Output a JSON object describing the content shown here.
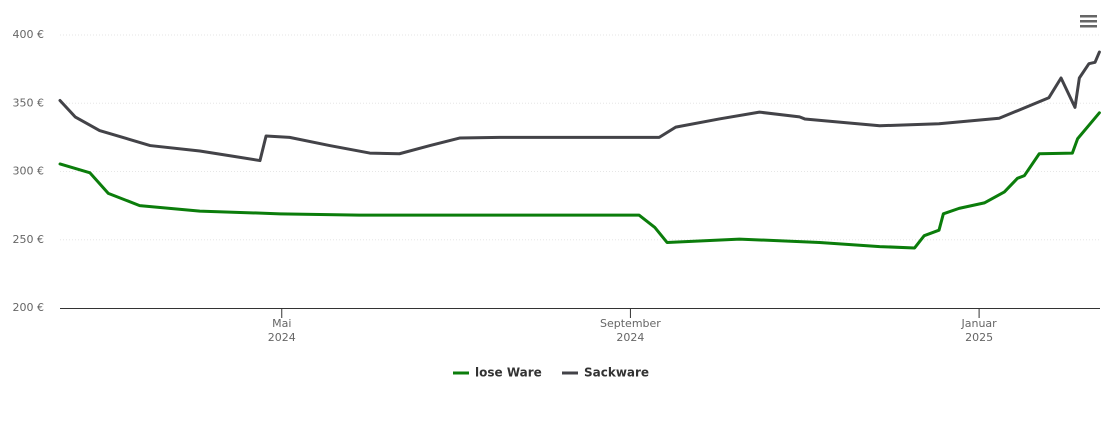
{
  "chart_data": {
    "type": "line",
    "series": [
      {
        "name": "lose Ware",
        "color": "#0b7d0b",
        "x": [
          2.456,
          2.8,
          3.01,
          3.37,
          4.06,
          4.98,
          5.89,
          7.5,
          9.1,
          9.28,
          9.42,
          10.25,
          11.17,
          11.86,
          12.26,
          12.37,
          12.54,
          12.59,
          12.77,
          13.06,
          13.29,
          13.44,
          13.52,
          13.69,
          14.07,
          14.13,
          14.38
        ],
        "values": [
          305.5,
          299,
          284,
          275,
          271,
          269,
          268,
          268,
          268,
          259,
          248,
          250.5,
          248,
          245,
          244,
          253,
          257,
          269,
          273,
          277,
          285,
          295,
          297,
          313,
          313.5,
          324,
          343
        ]
      },
      {
        "name": "Sackware",
        "color": "#434348",
        "x": [
          2.456,
          2.63,
          2.91,
          3.49,
          4.06,
          4.46,
          4.75,
          4.82,
          5.09,
          5.55,
          6.01,
          6.35,
          6.7,
          7.04,
          7.5,
          8.65,
          9.33,
          9.52,
          10.02,
          10.48,
          10.94,
          11.0,
          11.86,
          12.54,
          13.23,
          13.8,
          13.94,
          14.1,
          14.15,
          14.26,
          14.33,
          14.38
        ],
        "values": [
          352,
          340,
          330,
          319,
          315,
          311,
          308,
          326,
          325,
          319,
          313.5,
          313,
          319,
          324.5,
          325,
          325,
          325,
          332.5,
          338.5,
          343.5,
          340,
          338.5,
          333.5,
          335,
          339,
          354,
          368.5,
          347,
          368.5,
          379,
          380,
          387.5
        ]
      }
    ],
    "xlim": [
      2.456,
      14.387
    ],
    "xticks": [
      {
        "value": 5,
        "label": "Mai\n2024"
      },
      {
        "value": 9,
        "label": "September\n2024"
      },
      {
        "value": 13,
        "label": "Januar\n2025"
      }
    ],
    "ylim": [
      200,
      400
    ],
    "yticks": [
      {
        "value": 200,
        "label": "200 €"
      },
      {
        "value": 250,
        "label": "250 €"
      },
      {
        "value": 300,
        "label": "300 €"
      },
      {
        "value": 350,
        "label": "350 €"
      },
      {
        "value": 400,
        "label": "400 €"
      }
    ],
    "grid": true
  }
}
